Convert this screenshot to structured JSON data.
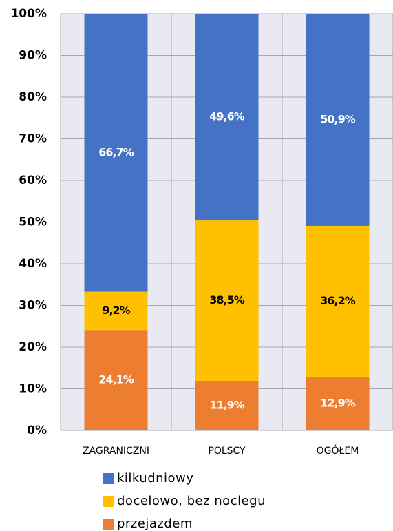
{
  "chart_data": {
    "type": "stacked_bar",
    "categories": [
      "ZAGRANICZNI",
      "POLSCY",
      "OGÓŁEM"
    ],
    "series": [
      {
        "name": "przejazdem",
        "color": "#ed7d31",
        "label_color": "#ffffff",
        "values": [
          24.1,
          11.9,
          12.9
        ],
        "value_labels": [
          "24,1%",
          "11,9%",
          "12,9%"
        ]
      },
      {
        "name": "docelowo, bez noclegu",
        "color": "#ffc000",
        "label_color": "#000000",
        "values": [
          9.2,
          38.5,
          36.2
        ],
        "value_labels": [
          "9,2%",
          "38,5%",
          "36,2%"
        ]
      },
      {
        "name": "kilkudniowy",
        "color": "#4472c4",
        "label_color": "#ffffff",
        "values": [
          66.7,
          49.6,
          50.9
        ],
        "value_labels": [
          "66,7%",
          "49,6%",
          "50,9%"
        ]
      }
    ],
    "ylim": [
      0,
      100
    ],
    "yticks": [
      {
        "value": 0,
        "label": "0%"
      },
      {
        "value": 10,
        "label": "10%"
      },
      {
        "value": 20,
        "label": "20%"
      },
      {
        "value": 30,
        "label": "30%"
      },
      {
        "value": 40,
        "label": "40%"
      },
      {
        "value": 50,
        "label": "50%"
      },
      {
        "value": 60,
        "label": "60%"
      },
      {
        "value": 70,
        "label": "70%"
      },
      {
        "value": 80,
        "label": "80%"
      },
      {
        "value": 90,
        "label": "90%"
      },
      {
        "value": 100,
        "label": "100%"
      }
    ],
    "grid": true
  }
}
